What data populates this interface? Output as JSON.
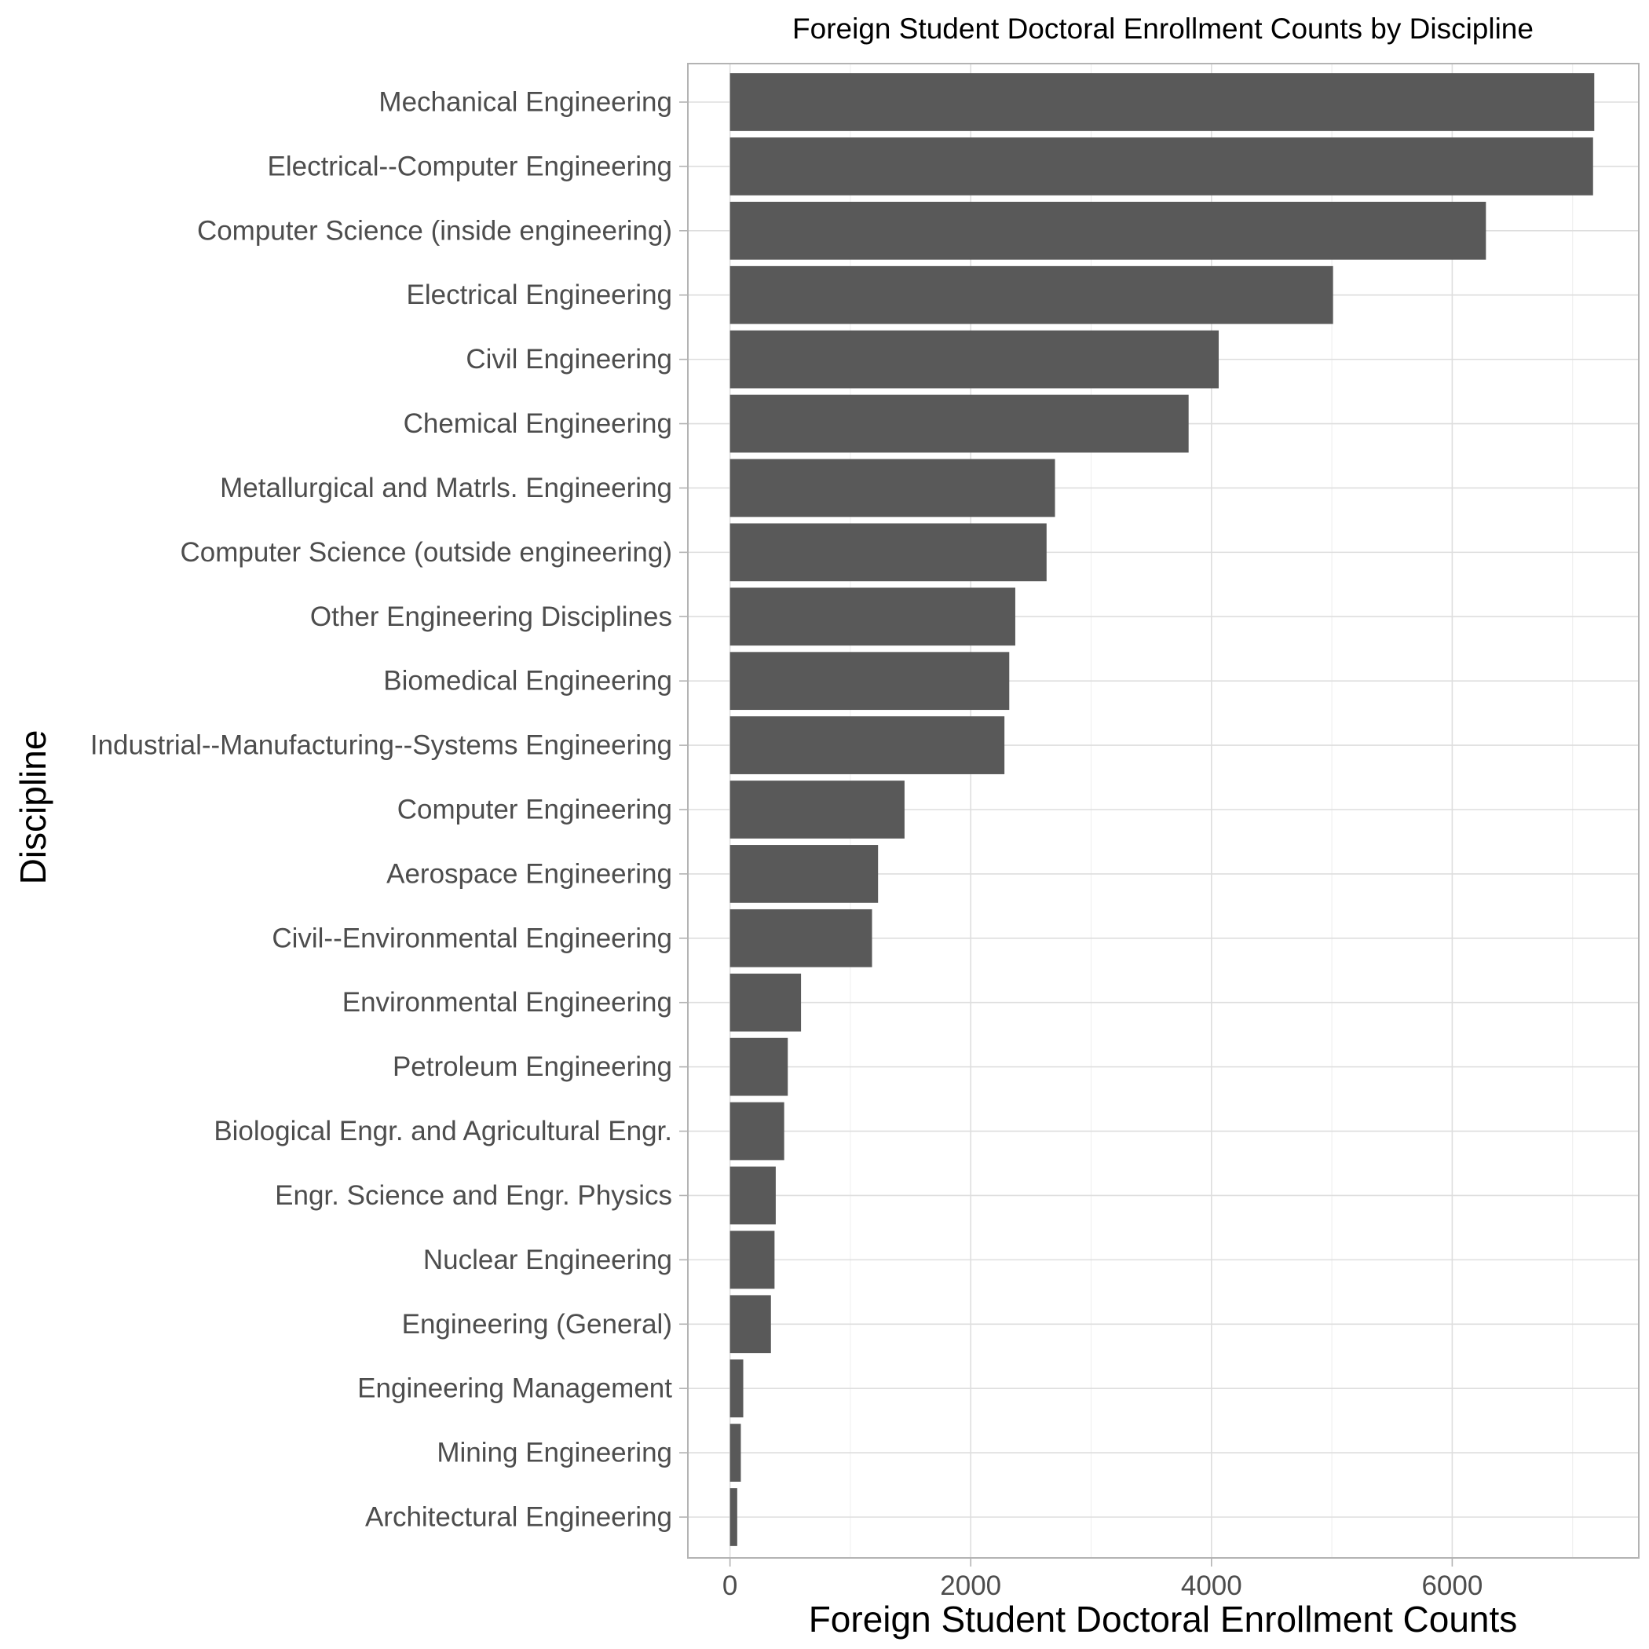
{
  "chart_data": {
    "type": "bar",
    "orientation": "horizontal",
    "title": "Foreign Student Doctoral Enrollment Counts by Discipline",
    "xlabel": "Foreign Student Doctoral Enrollment Counts",
    "ylabel": "Discipline",
    "xlim": [
      -350,
      7550
    ],
    "x_ticks": [
      0,
      2000,
      4000,
      6000
    ],
    "x_tick_labels": [
      "0",
      "2000",
      "4000",
      "6000"
    ],
    "grid": true,
    "categories": [
      "Mechanical Engineering",
      "Electrical--Computer Engineering",
      "Computer Science (inside engineering)",
      "Electrical Engineering",
      "Civil Engineering",
      "Chemical Engineering",
      "Metallurgical and Matrls. Engineering",
      "Computer Science (outside engineering)",
      "Other Engineering Disciplines",
      "Biomedical Engineering",
      "Industrial--Manufacturing--Systems Engineering",
      "Computer Engineering",
      "Aerospace Engineering",
      "Civil--Environmental Engineering",
      "Environmental Engineering",
      "Petroleum Engineering",
      "Biological Engr. and Agricultural Engr.",
      "Engr. Science and Engr. Physics",
      "Nuclear Engineering",
      "Engineering (General)",
      "Engineering Management",
      "Mining Engineering",
      "Architectural Engineering"
    ],
    "values": [
      7180,
      7170,
      6280,
      5010,
      4060,
      3810,
      2700,
      2630,
      2370,
      2320,
      2280,
      1450,
      1230,
      1180,
      590,
      480,
      450,
      380,
      370,
      340,
      110,
      90,
      60
    ],
    "bar_color": "#595959"
  }
}
